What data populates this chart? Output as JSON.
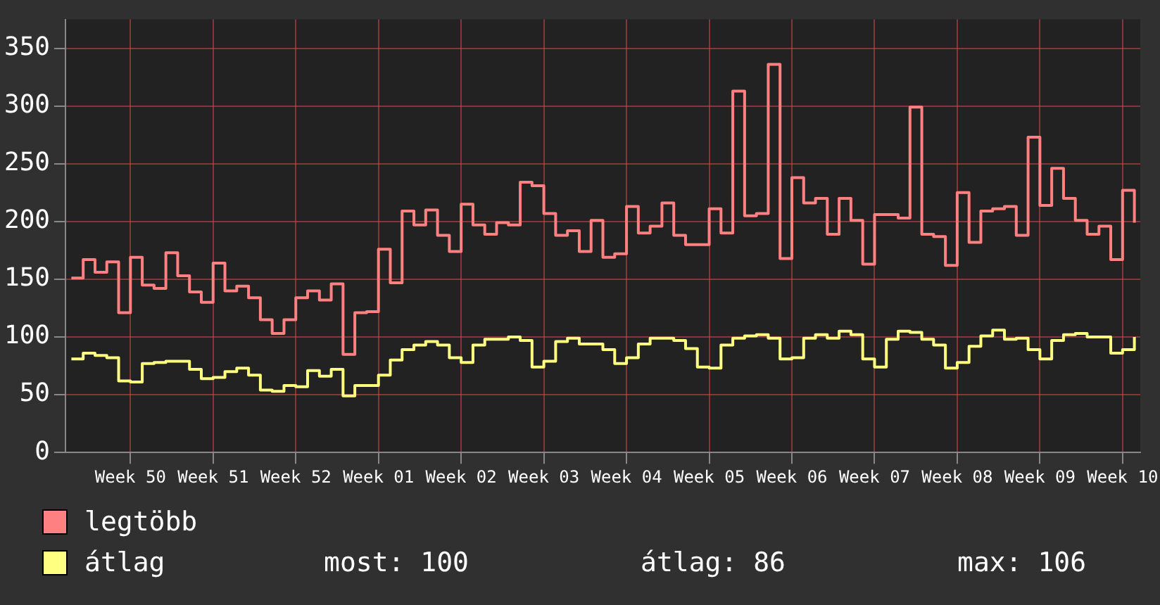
{
  "chart_data": {
    "type": "step",
    "categories": [
      null,
      null,
      null,
      null,
      null,
      "Week 50",
      null,
      null,
      null,
      null,
      null,
      null,
      "Week 51",
      null,
      null,
      null,
      null,
      null,
      null,
      "Week 52",
      null,
      null,
      null,
      null,
      null,
      null,
      "Week 01",
      null,
      null,
      null,
      null,
      null,
      null,
      "Week 02",
      null,
      null,
      null,
      null,
      null,
      null,
      "Week 03",
      null,
      null,
      null,
      null,
      null,
      null,
      "Week 04",
      null,
      null,
      null,
      null,
      null,
      null,
      "Week 05",
      null,
      null,
      null,
      null,
      null,
      null,
      "Week 06",
      null,
      null,
      null,
      null,
      null,
      null,
      "Week 07",
      null,
      null,
      null,
      null,
      null,
      null,
      "Week 08",
      null,
      null,
      null,
      null,
      null,
      null,
      "Week 09",
      null,
      null,
      null,
      null,
      null,
      null,
      "Week 10",
      null
    ],
    "series": [
      {
        "name": "legtöbb",
        "color": "#ff8080",
        "values": [
          151,
          167,
          156,
          165,
          121,
          169,
          145,
          142,
          173,
          153,
          139,
          130,
          164,
          140,
          144,
          134,
          115,
          103,
          115,
          134,
          140,
          132,
          146,
          85,
          121,
          122,
          176,
          147,
          209,
          197,
          210,
          188,
          174,
          215,
          197,
          189,
          199,
          197,
          234,
          231,
          207,
          188,
          192,
          174,
          201,
          169,
          172,
          213,
          190,
          196,
          216,
          188,
          180,
          180,
          211,
          190,
          313,
          205,
          207,
          336,
          168,
          238,
          216,
          220,
          189,
          220,
          201,
          163,
          206,
          206,
          203,
          299,
          189,
          187,
          162,
          225,
          182,
          209,
          211,
          213,
          188,
          273,
          214,
          246,
          220,
          201,
          189,
          196,
          167,
          227,
          199
        ]
      },
      {
        "name": "átlag",
        "color": "#ffff80",
        "values": [
          81,
          86,
          84,
          82,
          62,
          61,
          77,
          78,
          79,
          79,
          72,
          64,
          65,
          70,
          73,
          67,
          54,
          53,
          58,
          57,
          71,
          66,
          72,
          49,
          58,
          58,
          67,
          80,
          89,
          93,
          96,
          93,
          82,
          78,
          93,
          98,
          98,
          100,
          97,
          74,
          79,
          96,
          99,
          94,
          94,
          89,
          77,
          82,
          94,
          99,
          99,
          97,
          90,
          74,
          73,
          93,
          99,
          101,
          102,
          99,
          81,
          82,
          99,
          102,
          99,
          105,
          102,
          81,
          74,
          98,
          105,
          104,
          98,
          93,
          73,
          78,
          92,
          101,
          106,
          98,
          99,
          89,
          81,
          97,
          102,
          103,
          100,
          100,
          86,
          89,
          100
        ]
      }
    ],
    "ylim": [
      0,
      375
    ],
    "yticks": [
      0,
      50,
      100,
      150,
      200,
      250,
      300,
      350
    ],
    "grid": true,
    "legend": "bottom",
    "annotations": [
      "most: 100",
      "átlag: 86",
      "max: 106"
    ]
  }
}
